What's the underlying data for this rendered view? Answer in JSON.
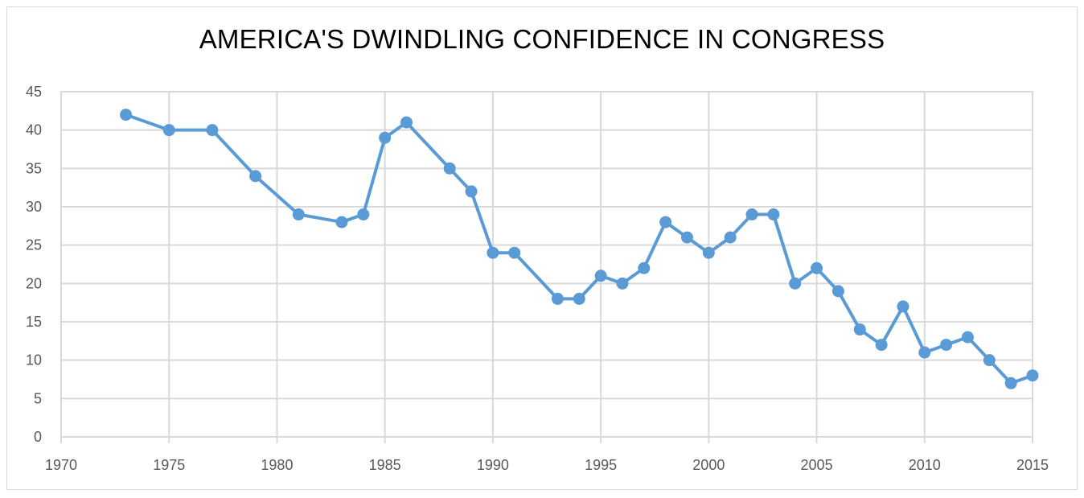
{
  "chart_data": {
    "type": "line",
    "title": "AMERICA'S DWINDLING CONFIDENCE IN CONGRESS",
    "xlabel": "",
    "ylabel": "",
    "xlim": [
      1970,
      2015
    ],
    "ylim": [
      0,
      45
    ],
    "x_ticks": [
      1970,
      1975,
      1980,
      1985,
      1990,
      1995,
      2000,
      2005,
      2010,
      2015
    ],
    "y_ticks": [
      0,
      5,
      10,
      15,
      20,
      25,
      30,
      35,
      40,
      45
    ],
    "grid": true,
    "legend": "none",
    "color": "#5b9bd5",
    "series": [
      {
        "x": [
          1973,
          1975,
          1977,
          1979,
          1981,
          1983,
          1984,
          1985,
          1986,
          1988,
          1989,
          1990,
          1991,
          1993,
          1994,
          1995,
          1996,
          1997,
          1998,
          1999,
          2000,
          2001,
          2002,
          2003,
          2004,
          2005,
          2006,
          2007,
          2008,
          2009,
          2010,
          2011,
          2012,
          2013,
          2014,
          2015
        ],
        "values": [
          42,
          40,
          40,
          34,
          29,
          28,
          29,
          39,
          41,
          35,
          32,
          24,
          24,
          18,
          18,
          21,
          20,
          22,
          28,
          26,
          24,
          26,
          29,
          29,
          20,
          22,
          19,
          14,
          12,
          17,
          11,
          12,
          13,
          10,
          7,
          8
        ]
      }
    ]
  }
}
